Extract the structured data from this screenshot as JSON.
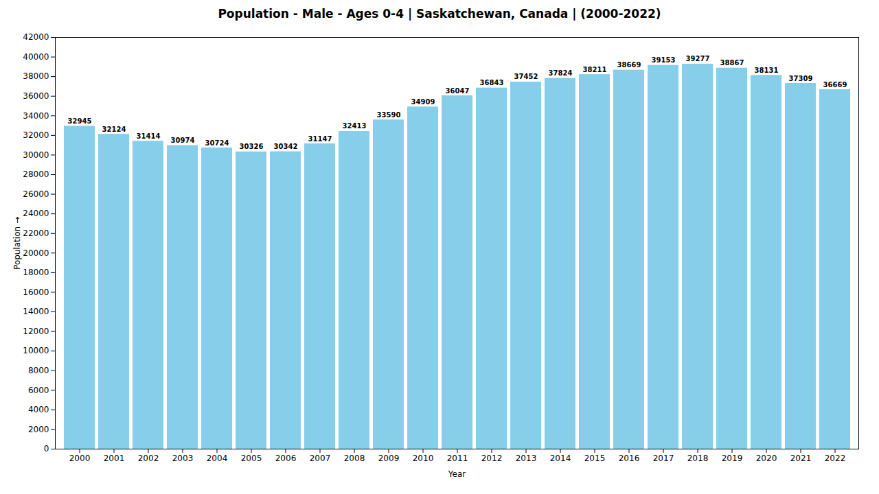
{
  "chart_data": {
    "type": "bar",
    "title": "Population - Male - Ages 0-4 | Saskatchewan, Canada |  (2000-2022)",
    "xlabel": "Year",
    "ylabel": "Population",
    "categories": [
      "2000",
      "2001",
      "2002",
      "2003",
      "2004",
      "2005",
      "2006",
      "2007",
      "2008",
      "2009",
      "2010",
      "2011",
      "2012",
      "2013",
      "2014",
      "2015",
      "2016",
      "2017",
      "2018",
      "2019",
      "2020",
      "2021",
      "2022"
    ],
    "values": [
      32945,
      32124,
      31414,
      30974,
      30724,
      30326,
      30342,
      31147,
      32413,
      33590,
      34909,
      36047,
      36843,
      37452,
      37824,
      38211,
      38669,
      39153,
      39277,
      38867,
      38131,
      37309,
      36669
    ],
    "color": "#87CEEB",
    "ylim": [
      0,
      42000
    ],
    "yticks": [
      0,
      2000,
      4000,
      6000,
      8000,
      10000,
      12000,
      14000,
      16000,
      18000,
      20000,
      22000,
      24000,
      26000,
      28000,
      30000,
      32000,
      34000,
      36000,
      38000,
      40000,
      42000
    ],
    "grid": false,
    "data_labels": true
  }
}
